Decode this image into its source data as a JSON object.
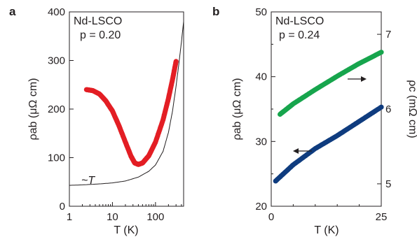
{
  "chart_data": [
    {
      "panel": "a",
      "type": "line",
      "title": "",
      "annotation": [
        "Nd-LSCO",
        "p = 0.20"
      ],
      "xlabel": "T (K)",
      "ylabel": "ρab (μΩ cm)",
      "xscale": "log",
      "xlim": [
        1,
        450
      ],
      "ylim": [
        0,
        400
      ],
      "xticks": [
        "1",
        "10",
        "100"
      ],
      "yticks": [
        "0",
        "100",
        "200",
        "300",
        "400"
      ],
      "fit_label": "~T",
      "series": [
        {
          "color": "#e31e24",
          "marker": "dense-dots",
          "x": [
            2.5,
            3.5,
            5,
            7,
            10,
            14,
            20,
            27,
            33,
            40,
            50,
            70,
            100,
            150,
            200,
            250,
            300
          ],
          "y": [
            240,
            238,
            231,
            217,
            196,
            167,
            132,
            103,
            89,
            86,
            89,
            104,
            132,
            178,
            222,
            262,
            298
          ]
        },
        {
          "color": "#231f20",
          "marker": "line",
          "x": [
            1,
            2,
            5,
            10,
            20,
            40,
            70,
            100,
            150,
            200,
            250,
            300,
            350,
            400,
            450
          ],
          "y": [
            43,
            44,
            46,
            48,
            52,
            60,
            72,
            85,
            113,
            152,
            197,
            247,
            294,
            338,
            380
          ]
        }
      ]
    },
    {
      "panel": "b",
      "type": "scatter",
      "title": "",
      "annotation": [
        "Nd-LSCO",
        "p = 0.24"
      ],
      "xlabel": "T (K)",
      "ylabel": "ρab (μΩ cm)",
      "y2label": "ρc (mΩ cm)",
      "xlim": [
        0,
        25
      ],
      "ylim": [
        20,
        50
      ],
      "y2lim": [
        4.7,
        7.3
      ],
      "xticks": [
        "0",
        "25"
      ],
      "yticks": [
        "20",
        "30",
        "40",
        "50"
      ],
      "y2ticks": [
        "5",
        "6",
        "7"
      ],
      "series": [
        {
          "color": "#0f3c7f",
          "axis": "left",
          "x": [
            1,
            5,
            10,
            15,
            20,
            25
          ],
          "y": [
            23.9,
            26.4,
            28.9,
            30.9,
            33.1,
            35.3
          ]
        },
        {
          "color": "#17a54d",
          "axis": "right",
          "x": [
            2,
            5,
            10,
            15,
            20,
            25
          ],
          "y": [
            5.93,
            6.07,
            6.26,
            6.44,
            6.61,
            6.76
          ]
        }
      ]
    }
  ]
}
